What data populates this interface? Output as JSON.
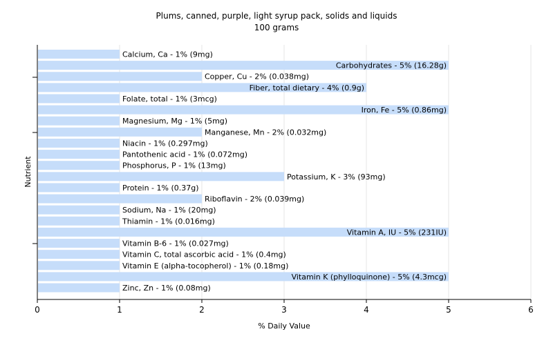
{
  "chart_data": {
    "type": "bar",
    "orientation": "horizontal",
    "title": "Plums, canned, purple, light syrup pack, solids and liquids",
    "subtitle": "100 grams",
    "xlabel": "% Daily Value",
    "ylabel": "Nutrient",
    "xlim": [
      0,
      6
    ],
    "xticks": [
      0,
      1,
      2,
      3,
      4,
      5,
      6
    ],
    "grid": true,
    "bar_color": "#c6ddfa",
    "categories": [
      "Calcium, Ca - 1% (9mg)",
      "Carbohydrates - 5% (16.28g)",
      "Copper, Cu - 2% (0.038mg)",
      "Fiber, total dietary - 4% (0.9g)",
      "Folate, total - 1% (3mcg)",
      "Iron, Fe - 5% (0.86mg)",
      "Magnesium, Mg - 1% (5mg)",
      "Manganese, Mn - 2% (0.032mg)",
      "Niacin - 1% (0.297mg)",
      "Pantothenic acid - 1% (0.072mg)",
      "Phosphorus, P - 1% (13mg)",
      "Potassium, K - 3% (93mg)",
      "Protein - 1% (0.37g)",
      "Riboflavin - 2% (0.039mg)",
      "Sodium, Na - 1% (20mg)",
      "Thiamin - 1% (0.016mg)",
      "Vitamin A, IU - 5% (231IU)",
      "Vitamin B-6 - 1% (0.027mg)",
      "Vitamin C, total ascorbic acid - 1% (0.4mg)",
      "Vitamin E (alpha-tocopherol) - 1% (0.18mg)",
      "Vitamin K (phylloquinone) - 5% (4.3mcg)",
      "Zinc, Zn - 1% (0.08mg)"
    ],
    "values": [
      1,
      5,
      2,
      4,
      1,
      5,
      1,
      2,
      1,
      1,
      1,
      3,
      1,
      2,
      1,
      1,
      5,
      1,
      1,
      1,
      5,
      1
    ]
  }
}
